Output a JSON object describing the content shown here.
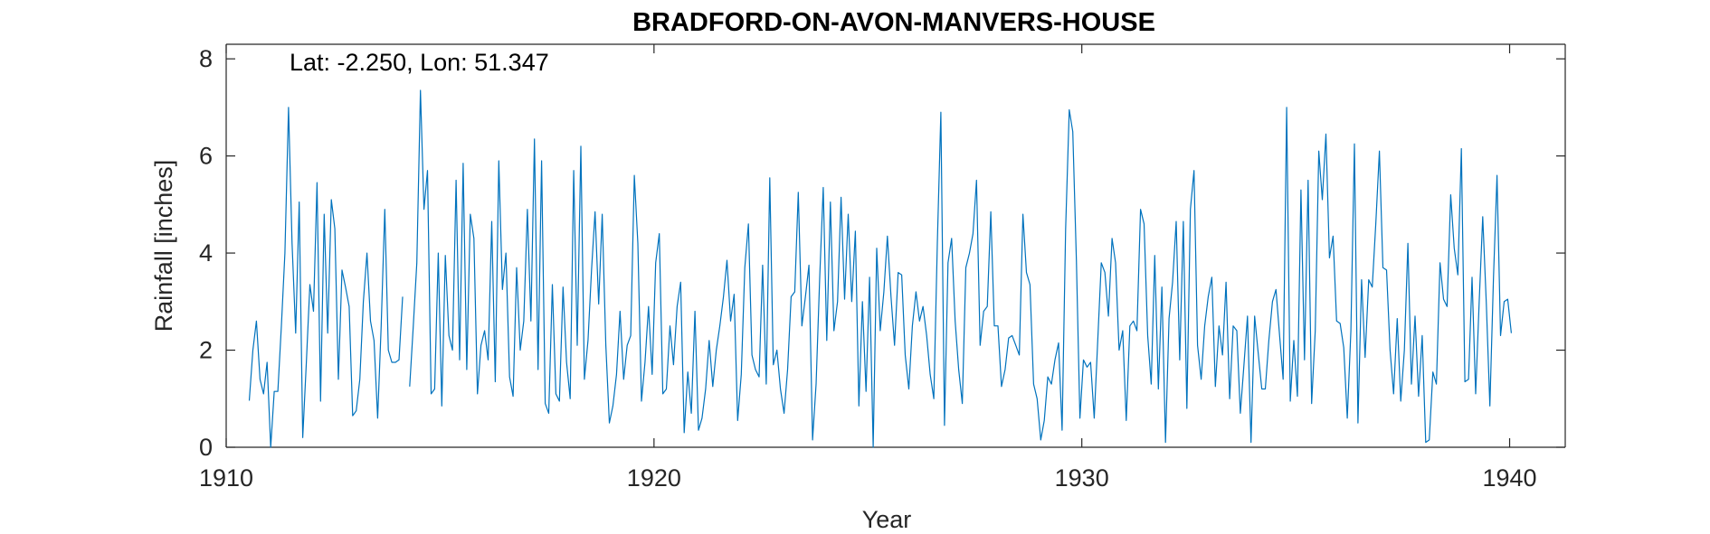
{
  "chart_data": {
    "type": "line",
    "title": "BRADFORD-ON-AVON-MANVERS-HOUSE",
    "annotation": "Lat: -2.250, Lon: 51.347",
    "xlabel": "Year",
    "ylabel": "Rainfall [inches]",
    "xlim": [
      1910,
      1941.3
    ],
    "ylim": [
      0,
      8.3
    ],
    "xticks": [
      1910,
      1920,
      1930,
      1940
    ],
    "yticks": [
      0,
      2,
      4,
      6,
      8
    ],
    "grid": false,
    "line_color": "#0072BD",
    "series": [
      {
        "name": "",
        "x_start": 1910.54,
        "x_step": 0.08333,
        "values": [
          0.96,
          2.0,
          2.6,
          1.4,
          1.1,
          1.75,
          0.0,
          1.15,
          1.15,
          2.5,
          4.0,
          7.0,
          4.2,
          2.35,
          5.05,
          0.2,
          1.75,
          3.35,
          2.8,
          5.45,
          0.95,
          4.8,
          2.35,
          5.1,
          4.5,
          1.4,
          3.65,
          3.3,
          2.9,
          0.65,
          0.75,
          1.4,
          3.0,
          4.0,
          2.6,
          2.2,
          0.6,
          2.5,
          4.9,
          2.0,
          1.75,
          1.75,
          1.8,
          3.1,
          null,
          1.25,
          2.5,
          3.8,
          7.35,
          4.9,
          5.7,
          1.1,
          1.2,
          4.0,
          0.85,
          3.95,
          2.3,
          2.0,
          5.5,
          1.8,
          5.85,
          1.6,
          4.8,
          4.3,
          1.1,
          2.1,
          2.4,
          1.8,
          4.65,
          1.35,
          5.9,
          3.25,
          4.0,
          1.45,
          1.05,
          3.7,
          2.0,
          2.6,
          4.9,
          2.6,
          6.35,
          1.6,
          5.9,
          0.9,
          0.7,
          3.35,
          1.1,
          0.95,
          3.3,
          1.75,
          1.0,
          5.7,
          2.1,
          6.2,
          1.4,
          2.2,
          3.65,
          4.85,
          2.95,
          4.8,
          2.1,
          0.5,
          0.85,
          1.5,
          2.8,
          1.4,
          2.1,
          2.3,
          5.6,
          4.2,
          0.95,
          1.75,
          2.9,
          1.5,
          3.8,
          4.4,
          1.1,
          1.2,
          2.5,
          1.7,
          2.9,
          3.4,
          0.3,
          1.55,
          0.7,
          2.8,
          0.35,
          0.6,
          1.2,
          2.2,
          1.25,
          2.0,
          2.5,
          3.1,
          3.85,
          2.6,
          3.15,
          0.55,
          1.5,
          3.7,
          4.6,
          1.9,
          1.6,
          1.45,
          3.75,
          1.3,
          5.55,
          1.7,
          2.0,
          1.2,
          0.7,
          1.6,
          3.1,
          3.2,
          5.25,
          2.5,
          3.1,
          3.75,
          0.15,
          1.3,
          3.5,
          5.35,
          2.2,
          5.05,
          2.4,
          3.0,
          5.15,
          3.05,
          4.8,
          3.0,
          4.45,
          0.85,
          3.0,
          1.15,
          3.5,
          0.0,
          4.1,
          2.4,
          3.2,
          4.35,
          3.1,
          2.1,
          3.6,
          3.55,
          1.9,
          1.2,
          2.5,
          3.2,
          2.6,
          2.9,
          2.3,
          1.5,
          1.0,
          4.2,
          6.9,
          0.45,
          3.8,
          4.3,
          2.6,
          1.6,
          0.9,
          3.7,
          4.0,
          4.4,
          5.5,
          2.1,
          2.8,
          2.9,
          4.85,
          2.5,
          2.5,
          1.25,
          1.6,
          2.25,
          2.3,
          2.1,
          1.9,
          4.8,
          3.6,
          3.35,
          1.3,
          1.0,
          0.15,
          0.55,
          1.45,
          1.3,
          1.8,
          2.15,
          0.35,
          4.5,
          6.95,
          6.5,
          3.85,
          0.6,
          1.8,
          1.65,
          1.75,
          0.6,
          2.2,
          3.8,
          3.6,
          2.7,
          4.3,
          3.8,
          2.0,
          2.4,
          0.55,
          2.5,
          2.6,
          2.4,
          4.9,
          4.6,
          2.3,
          1.3,
          3.95,
          1.2,
          3.3,
          0.1,
          2.65,
          3.4,
          4.65,
          1.8,
          4.65,
          0.8,
          4.9,
          5.7,
          2.1,
          1.4,
          2.5,
          3.1,
          3.5,
          1.25,
          2.5,
          1.9,
          3.4,
          1.0,
          2.5,
          2.4,
          0.7,
          1.7,
          2.7,
          0.1,
          2.7,
          1.95,
          1.2,
          1.2,
          2.2,
          3.0,
          3.25,
          2.3,
          1.4,
          7.0,
          0.95,
          2.2,
          1.05,
          5.3,
          1.8,
          5.5,
          0.9,
          2.4,
          6.1,
          5.1,
          6.45,
          3.9,
          4.35,
          2.6,
          2.55,
          2.05,
          0.6,
          2.4,
          6.25,
          0.5,
          3.45,
          1.85,
          3.45,
          3.3,
          4.6,
          6.1,
          3.7,
          3.65,
          2.0,
          1.1,
          2.65,
          0.95,
          2.0,
          4.2,
          1.3,
          2.7,
          1.05,
          2.3,
          0.1,
          0.15,
          1.55,
          1.3,
          3.8,
          3.05,
          2.9,
          5.2,
          4.1,
          3.55,
          6.15,
          1.35,
          1.4,
          3.5,
          1.1,
          3.0,
          4.75,
          2.95,
          0.85,
          3.5,
          5.6,
          2.3,
          3.0,
          3.05,
          2.35
        ]
      }
    ]
  }
}
